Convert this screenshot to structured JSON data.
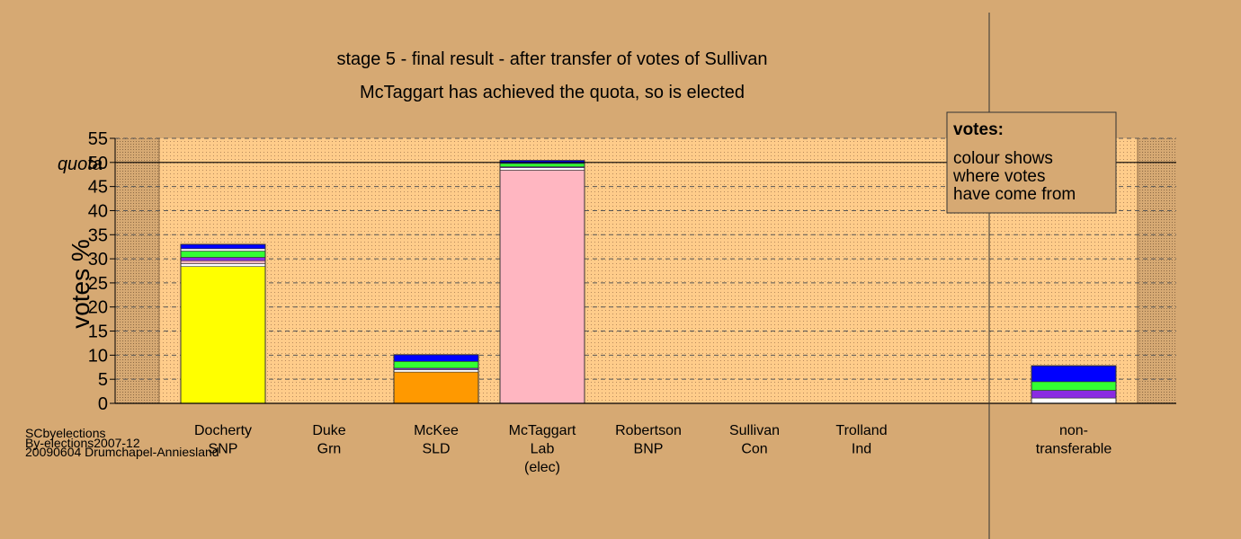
{
  "chart_data": {
    "type": "bar",
    "title": "stage 5 - final result - after transfer of votes of Sullivan",
    "subtitle": "McTaggart has achieved the quota, so is elected",
    "ylabel": "votes %",
    "ylim": [
      0,
      55
    ],
    "yticks": [
      "0",
      "5",
      "10",
      "15",
      "20",
      "25",
      "30",
      "35",
      "40",
      "45",
      "50",
      "55"
    ],
    "quota": {
      "label": "quota",
      "value": 50
    },
    "grid": true,
    "legend": {
      "position": "top-right",
      "title": "votes:",
      "lines": [
        "colour shows",
        "where votes",
        "have come from"
      ]
    },
    "categories": [
      {
        "lines": [
          "Docherty",
          "SNP"
        ]
      },
      {
        "lines": [
          "Duke",
          "Grn"
        ]
      },
      {
        "lines": [
          "McKee",
          "SLD"
        ]
      },
      {
        "lines": [
          "McTaggart",
          "Lab",
          "(elec)"
        ]
      },
      {
        "lines": [
          "Robertson",
          "BNP"
        ]
      },
      {
        "lines": [
          "Sullivan",
          "Con"
        ]
      },
      {
        "lines": [
          "Trolland",
          "Ind"
        ]
      },
      {
        "lines": [
          "non-",
          "transferable"
        ]
      }
    ],
    "segments": [
      [
        {
          "value": 28.4,
          "color": "#ffff00"
        },
        {
          "value": 0.6,
          "color": "#ffffff"
        },
        {
          "value": 0.6,
          "color": "#ffb6c1"
        },
        {
          "value": 0.7,
          "color": "#8a2be2"
        },
        {
          "value": 1.3,
          "color": "#33ff33"
        },
        {
          "value": 0.5,
          "color": "#ffffff"
        },
        {
          "value": 0.9,
          "color": "#0000ff"
        }
      ],
      [],
      [
        {
          "value": 6.5,
          "color": "#ff9900"
        },
        {
          "value": 0.5,
          "color": "#ffffff"
        },
        {
          "value": 0.3,
          "color": "#8a2be2"
        },
        {
          "value": 1.4,
          "color": "#33ff33"
        },
        {
          "value": 1.4,
          "color": "#0000ff"
        }
      ],
      [
        {
          "value": 48.4,
          "color": "#ffb6c1"
        },
        {
          "value": 0.5,
          "color": "#ffffff"
        },
        {
          "value": 0.2,
          "color": "#8a2be2"
        },
        {
          "value": 0.7,
          "color": "#33ff33"
        },
        {
          "value": 0.6,
          "color": "#0000ff"
        }
      ],
      [],
      [],
      [],
      [
        {
          "value": 1.1,
          "color": "#ffffff"
        },
        {
          "value": 1.6,
          "color": "#8a2be2"
        },
        {
          "value": 1.8,
          "color": "#33ff33"
        },
        {
          "value": 3.3,
          "color": "#0000ff"
        }
      ]
    ]
  },
  "footer": {
    "lines": [
      "SCbyelections",
      "By-elections2007-12",
      "20090604 Drumchapel-Anniesland"
    ]
  },
  "colors": {
    "background": "#d6a973",
    "plot_area": "#ffcc8a"
  }
}
